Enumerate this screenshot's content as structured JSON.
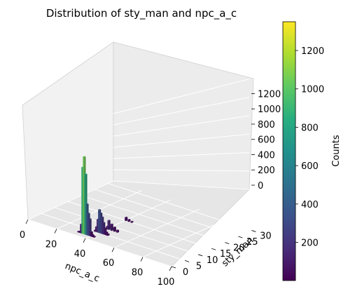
{
  "chart_data": {
    "type": "3d-bar-histogram",
    "title": "Distribution of sty_man and npc_a_c",
    "xlabel": "npc_a_c",
    "ylabel": "sty_man",
    "zlabel": "",
    "colorbar_label": "Counts",
    "x_ticks": [
      "0",
      "20",
      "40",
      "60",
      "80",
      "100"
    ],
    "y_ticks": [
      "0",
      "5",
      "10",
      "15",
      "20",
      "25",
      "30"
    ],
    "z_ticks": [
      "0",
      "200",
      "400",
      "600",
      "800",
      "1000",
      "1200"
    ],
    "colorbar_ticks": [
      "200",
      "400",
      "600",
      "800",
      "1000",
      "1200"
    ],
    "xlim": [
      0,
      100
    ],
    "ylim": [
      0,
      32
    ],
    "zlim": [
      0,
      1300
    ],
    "colorbar_range": [
      1,
      1350
    ],
    "colormap": "viridis",
    "bars": [
      {
        "x": 35.5,
        "y": 2,
        "z": 1050
      },
      {
        "x": 34.5,
        "y": 2,
        "z": 900
      },
      {
        "x": 36.5,
        "y": 2,
        "z": 820
      },
      {
        "x": 37.5,
        "y": 2,
        "z": 420
      },
      {
        "x": 38.5,
        "y": 2,
        "z": 300
      },
      {
        "x": 39.5,
        "y": 2,
        "z": 230
      },
      {
        "x": 33.5,
        "y": 2,
        "z": 120
      },
      {
        "x": 40.5,
        "y": 2,
        "z": 60
      },
      {
        "x": 41.5,
        "y": 2,
        "z": 25
      },
      {
        "x": 32.5,
        "y": 2,
        "z": 18
      },
      {
        "x": 31.5,
        "y": 2,
        "z": 8
      },
      {
        "x": 42.5,
        "y": 2,
        "z": 10
      },
      {
        "x": 40.5,
        "y": 5,
        "z": 320
      },
      {
        "x": 41.5,
        "y": 5,
        "z": 280
      },
      {
        "x": 42.5,
        "y": 5,
        "z": 230
      },
      {
        "x": 39.5,
        "y": 5,
        "z": 180
      },
      {
        "x": 43.5,
        "y": 5,
        "z": 160
      },
      {
        "x": 44.5,
        "y": 5,
        "z": 90
      },
      {
        "x": 38.5,
        "y": 5,
        "z": 70
      },
      {
        "x": 45.5,
        "y": 5,
        "z": 40
      },
      {
        "x": 46.5,
        "y": 5,
        "z": 20
      },
      {
        "x": 37.5,
        "y": 5,
        "z": 15
      },
      {
        "x": 41.5,
        "y": 8,
        "z": 130
      },
      {
        "x": 43.5,
        "y": 8,
        "z": 90
      },
      {
        "x": 45.5,
        "y": 8,
        "z": 60
      },
      {
        "x": 47.5,
        "y": 8,
        "z": 30
      },
      {
        "x": 40.5,
        "y": 8,
        "z": 40
      },
      {
        "x": 40.5,
        "y": 15,
        "z": 50
      },
      {
        "x": 42.5,
        "y": 15,
        "z": 30
      },
      {
        "x": 44.5,
        "y": 15,
        "z": 15
      }
    ]
  }
}
